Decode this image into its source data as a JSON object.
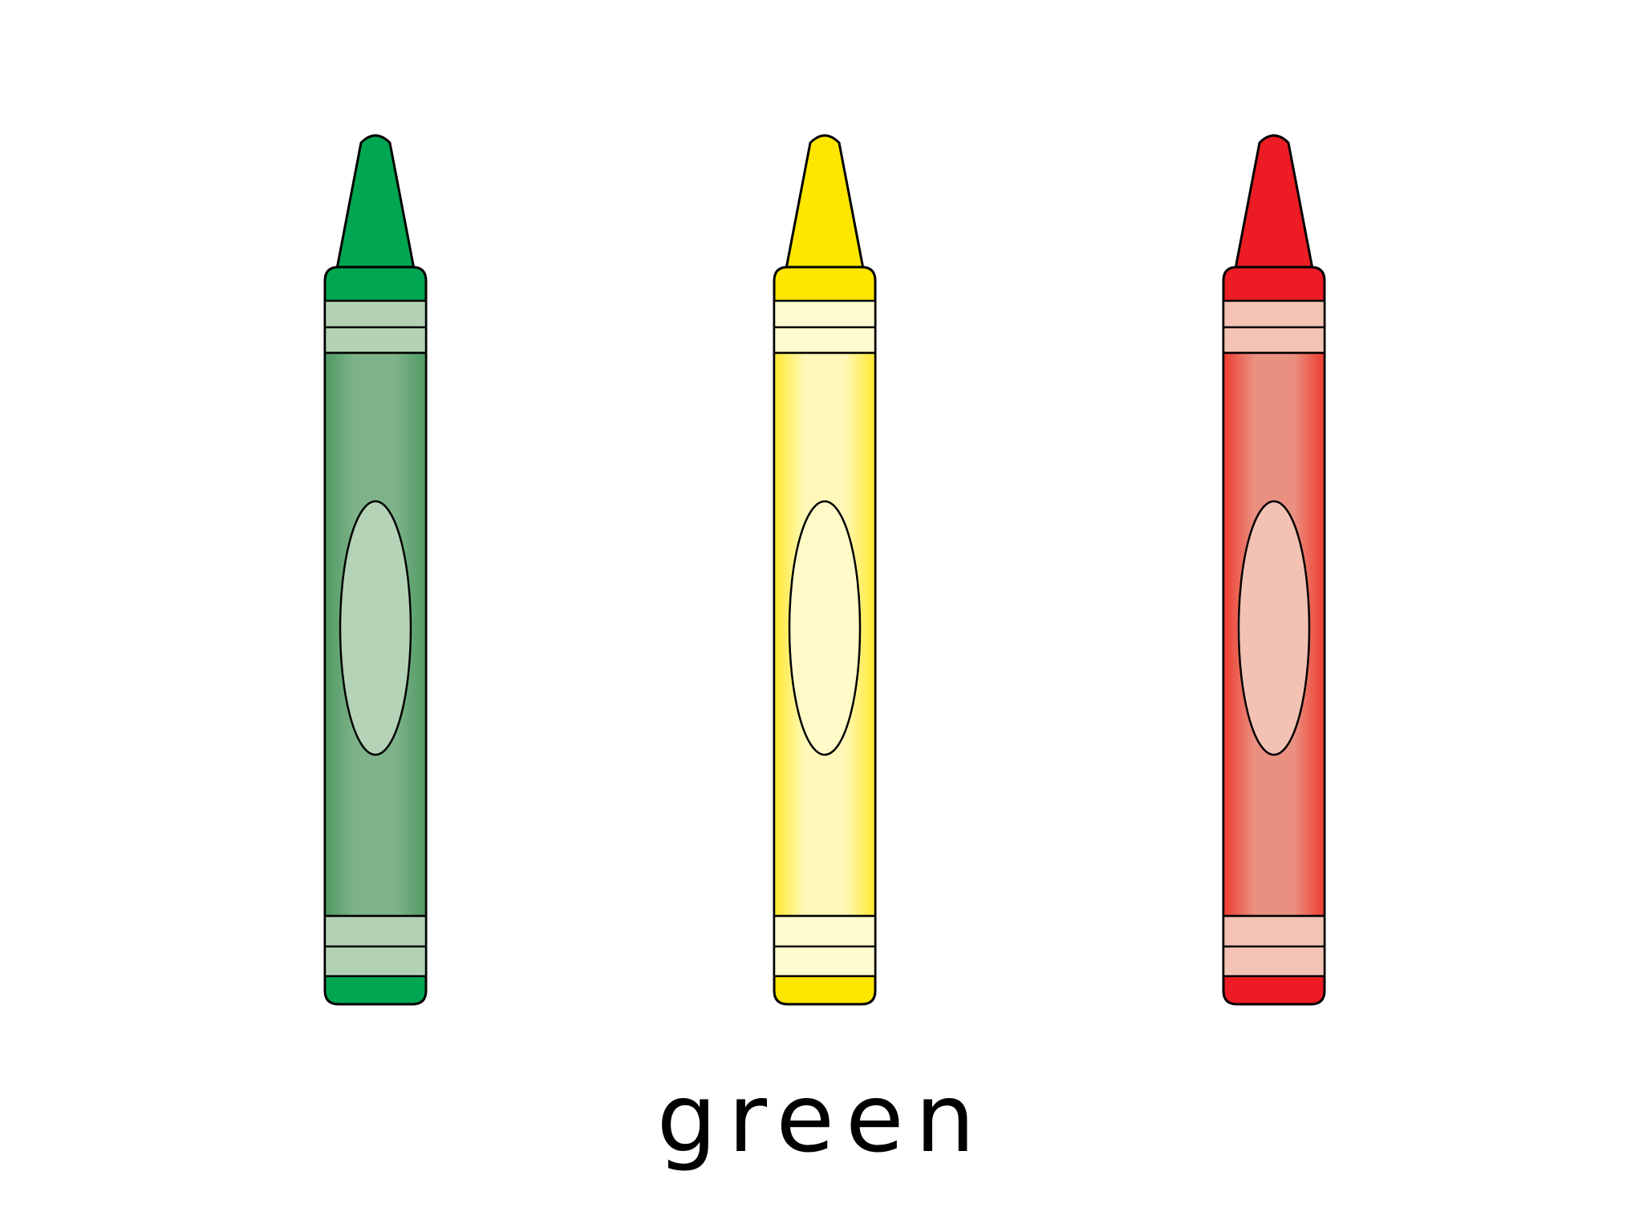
{
  "label": {
    "word": "green"
  },
  "crayons": [
    {
      "name": "green",
      "tip": "#00a651",
      "band": "#b3d2b5",
      "body_edge": "#4f9a62",
      "body_mid": "#7eb38a",
      "label_fill": "#b5d3b6"
    },
    {
      "name": "yellow",
      "tip": "#ffe600",
      "band": "#fffbd0",
      "body_edge": "#ffe92e",
      "body_mid": "#fff8b8",
      "label_fill": "#fffac8"
    },
    {
      "name": "red",
      "tip": "#ed1c24",
      "band": "#f3c3b6",
      "body_edge": "#ee3b2f",
      "body_mid": "#e99080",
      "label_fill": "#f3c2b4"
    }
  ]
}
